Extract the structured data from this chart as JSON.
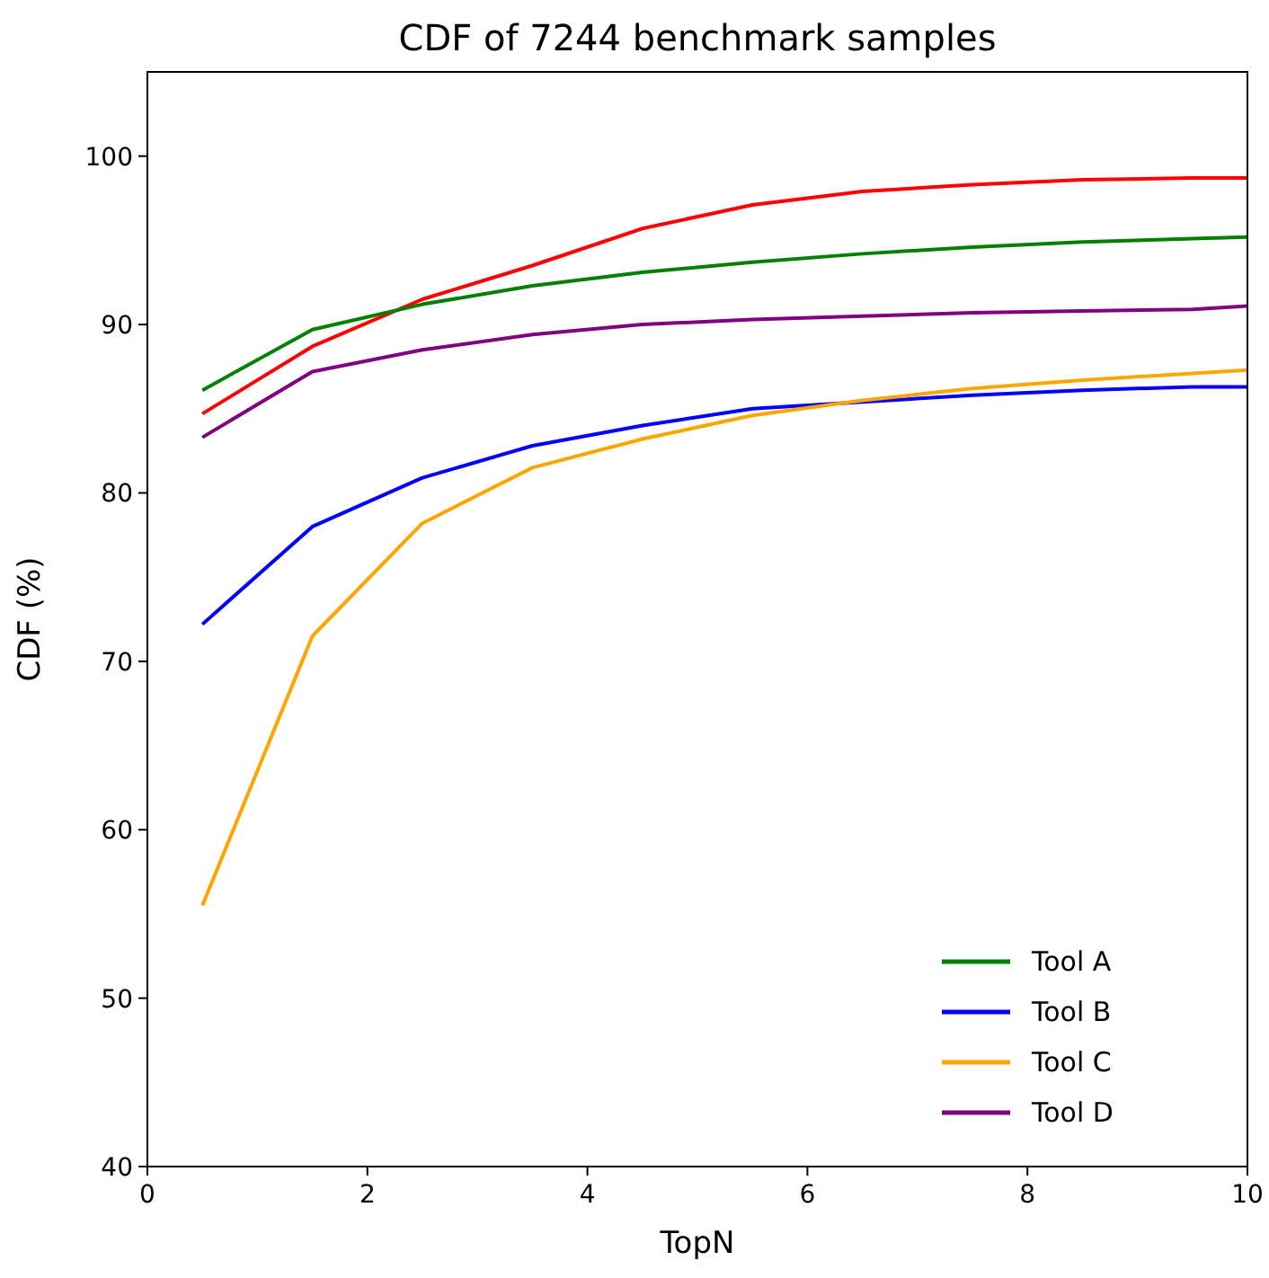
{
  "chart_data": {
    "type": "line",
    "title": "CDF of 7244 benchmark samples",
    "xlabel": "TopN",
    "ylabel": "CDF (%)",
    "x": [
      0.5,
      1.5,
      2.5,
      3.5,
      4.5,
      5.5,
      6.5,
      7.5,
      8.5,
      9.5,
      10
    ],
    "series": [
      {
        "color": "#ff0000",
        "values": [
          84.7,
          88.7,
          91.5,
          93.5,
          95.7,
          97.1,
          97.9,
          98.3,
          98.6,
          98.7,
          98.7
        ]
      },
      {
        "name": "Tool A",
        "color": "#008000",
        "values": [
          86.1,
          89.7,
          91.2,
          92.3,
          93.1,
          93.7,
          94.2,
          94.6,
          94.9,
          95.1,
          95.2
        ]
      },
      {
        "name": "Tool B",
        "color": "#0000ff",
        "values": [
          72.2,
          78.0,
          80.9,
          82.8,
          84.0,
          85.0,
          85.4,
          85.8,
          86.1,
          86.3,
          86.3
        ]
      },
      {
        "name": "Tool C",
        "color": "#ffa500",
        "values": [
          55.5,
          71.5,
          78.2,
          81.5,
          83.2,
          84.6,
          85.5,
          86.2,
          86.7,
          87.1,
          87.3
        ]
      },
      {
        "name": "Tool D",
        "color": "#800080",
        "values": [
          83.3,
          87.2,
          88.5,
          89.4,
          90.0,
          90.3,
          90.5,
          90.7,
          90.8,
          90.9,
          91.1
        ]
      }
    ],
    "xlim": [
      0,
      10
    ],
    "ylim": [
      40,
      105
    ],
    "xticks": [
      0,
      2,
      4,
      6,
      8,
      10
    ],
    "yticks": [
      40,
      50,
      60,
      70,
      80,
      90,
      100
    ],
    "legend": "bottom right",
    "grid": false,
    "line_style": "solid",
    "marker": "none"
  }
}
